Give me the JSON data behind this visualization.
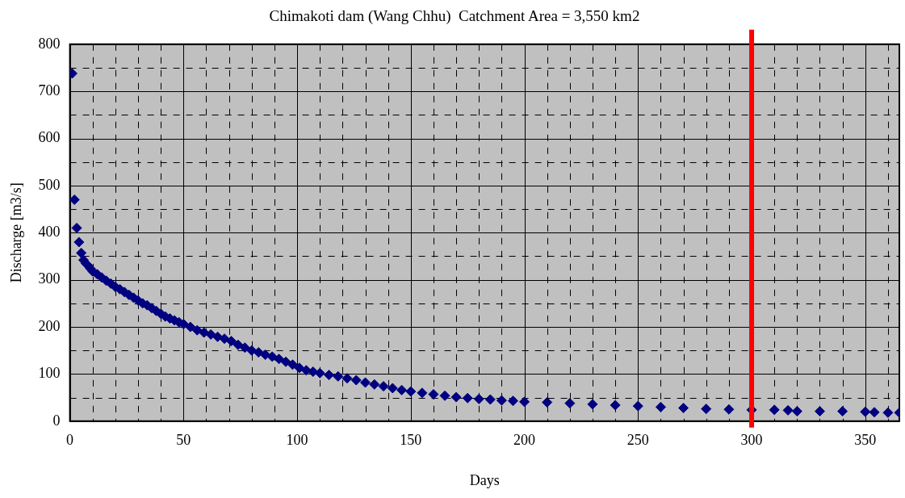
{
  "chart_data": {
    "type": "scatter",
    "title": "Chimakoti dam (Wang Chhu)  Catchment Area = 3,550 km2",
    "xlabel": "Days",
    "ylabel": "Discharge [m3/s]",
    "x": [
      1,
      2,
      3,
      4,
      5,
      6,
      7,
      8,
      9,
      10,
      12,
      14,
      16,
      18,
      20,
      22,
      24,
      26,
      28,
      30,
      32,
      34,
      36,
      38,
      40,
      42,
      44,
      46,
      48,
      50,
      53,
      56,
      59,
      62,
      65,
      68,
      71,
      74,
      77,
      80,
      83,
      86,
      89,
      92,
      95,
      98,
      101,
      104,
      107,
      110,
      114,
      118,
      122,
      126,
      130,
      134,
      138,
      142,
      146,
      150,
      155,
      160,
      165,
      170,
      175,
      180,
      185,
      190,
      195,
      200,
      210,
      220,
      230,
      240,
      250,
      260,
      270,
      280,
      290,
      300,
      310,
      316,
      320,
      330,
      340,
      350,
      354,
      360,
      365
    ],
    "series": [
      {
        "color": "#000080",
        "values": [
          738,
          470,
          410,
          380,
          357,
          342,
          335,
          330,
          324,
          318,
          312,
          305,
          298,
          292,
          285,
          280,
          274,
          268,
          262,
          256,
          250,
          246,
          240,
          234,
          228,
          222,
          218,
          214,
          210,
          206,
          200,
          193,
          188,
          184,
          179,
          175,
          170,
          162,
          156,
          150,
          146,
          141,
          137,
          132,
          126,
          120,
          113,
          108,
          105,
          102,
          98,
          95,
          91,
          87,
          82,
          78,
          74,
          70,
          66,
          63,
          60,
          57,
          54,
          51,
          49,
          47,
          46,
          44,
          43,
          41,
          40,
          38,
          36,
          34,
          32,
          30,
          28,
          26,
          25,
          24,
          24,
          23,
          21,
          21,
          21,
          20,
          19,
          18,
          18
        ]
      }
    ],
    "xlim": [
      0,
      365
    ],
    "ylim": [
      0,
      800
    ],
    "xticks": [
      0,
      {
        "value": 10,
        "label": null
      },
      {
        "value": 20,
        "label": null
      },
      {
        "value": 30,
        "label": null
      },
      {
        "value": 40,
        "label": null
      },
      50,
      {
        "value": 60,
        "label": null
      },
      {
        "value": 70,
        "label": null
      },
      {
        "value": 80,
        "label": null
      },
      {
        "value": 90,
        "label": null
      },
      100,
      {
        "value": 110,
        "label": null
      },
      {
        "value": 120,
        "label": null
      },
      {
        "value": 130,
        "label": null
      },
      {
        "value": 140,
        "label": null
      },
      150,
      {
        "value": 160,
        "label": null
      },
      {
        "value": 170,
        "label": null
      },
      {
        "value": 180,
        "label": null
      },
      {
        "value": 190,
        "label": null
      },
      200,
      {
        "value": 210,
        "label": null
      },
      {
        "value": 220,
        "label": null
      },
      {
        "value": 230,
        "label": null
      },
      {
        "value": 240,
        "label": null
      },
      250,
      {
        "value": 260,
        "label": null
      },
      {
        "value": 270,
        "label": null
      },
      {
        "value": 280,
        "label": null
      },
      {
        "value": 290,
        "label": null
      },
      300,
      {
        "value": 310,
        "label": null
      },
      {
        "value": 320,
        "label": null
      },
      {
        "value": 330,
        "label": null
      },
      {
        "value": 340,
        "label": null
      },
      350,
      {
        "value": 360,
        "label": null
      }
    ],
    "yticks": [
      0,
      {
        "value": 50,
        "label": null
      },
      100,
      {
        "value": 150,
        "label": null
      },
      200,
      {
        "value": 250,
        "label": null
      },
      300,
      {
        "value": 350,
        "label": null
      },
      400,
      {
        "value": 450,
        "label": null
      },
      500,
      {
        "value": 550,
        "label": null
      },
      600,
      {
        "value": 650,
        "label": null
      },
      700,
      {
        "value": 750,
        "label": null
      },
      800
    ],
    "ref_lines": [
      {
        "axis": "x",
        "value": 300,
        "color": "#ff0000"
      }
    ],
    "grid": true,
    "legend": false,
    "marker": "diamond"
  }
}
